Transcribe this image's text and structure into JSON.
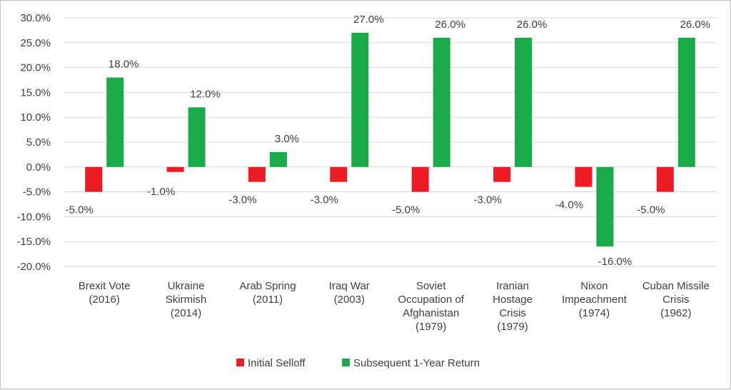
{
  "chart_data": {
    "type": "bar",
    "categories": [
      [
        "Brexit Vote",
        "(2016)"
      ],
      [
        "Ukraine",
        "Skirmish",
        "(2014)"
      ],
      [
        "Arab Spring",
        "(2011)"
      ],
      [
        "Iraq War",
        "(2003)"
      ],
      [
        "Soviet",
        "Occupation of",
        "Afghanistan",
        "(1979)"
      ],
      [
        "Iranian",
        "Hostage",
        "Crisis",
        "(1979)"
      ],
      [
        "Nixon",
        "Impeachment",
        "(1974)"
      ],
      [
        "Cuban Missile",
        "Crisis",
        "(1962)"
      ]
    ],
    "series": [
      {
        "name": "Initial Selloff",
        "color": "#ed1c24",
        "values": [
          -5.0,
          -1.0,
          -3.0,
          -3.0,
          -5.0,
          -3.0,
          -4.0,
          -5.0
        ]
      },
      {
        "name": "Subsequent 1-Year Return",
        "color": "#1aaa4a",
        "values": [
          18.0,
          12.0,
          3.0,
          27.0,
          26.0,
          26.0,
          -16.0,
          26.0
        ]
      }
    ],
    "ylim": [
      -20,
      30
    ],
    "yticks": [
      30,
      25,
      20,
      15,
      10,
      5,
      0,
      -5,
      -10,
      -15,
      -20
    ],
    "tick_format": "percent_1dp",
    "grid": true,
    "legend_position": "bottom"
  }
}
